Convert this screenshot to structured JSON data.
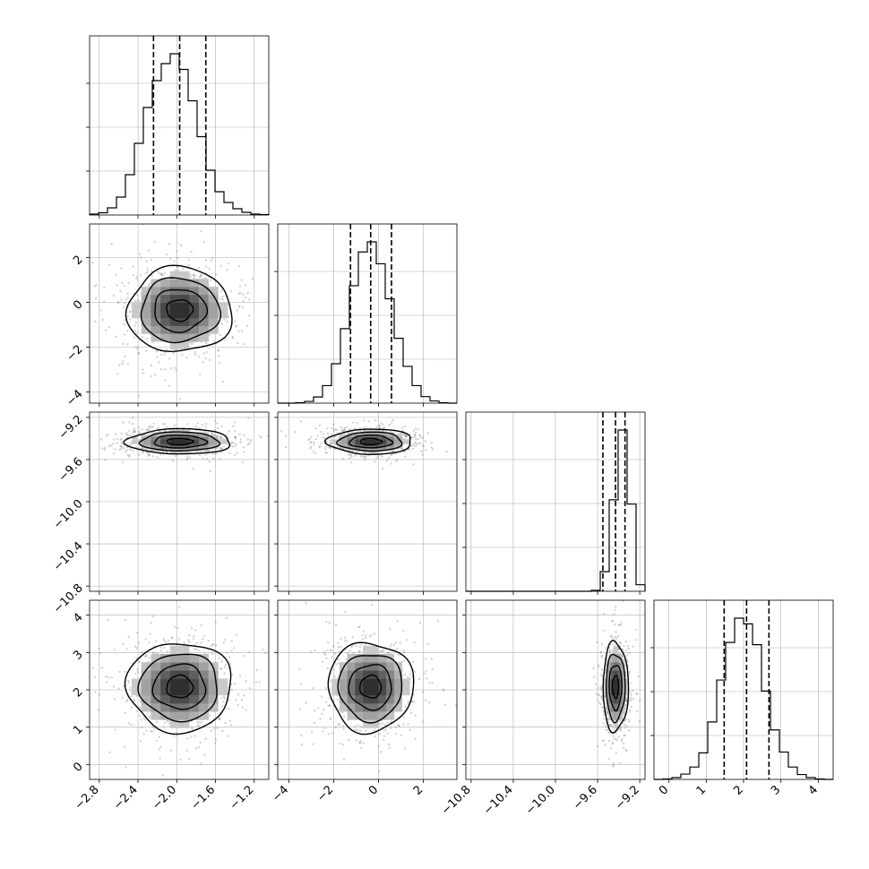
{
  "chart_data": {
    "type": "corner",
    "parameters": [
      {
        "range": [
          -2.9,
          -1.05
        ],
        "ticks": [
          -2.8,
          -2.4,
          -2.0,
          -1.6,
          -1.2
        ],
        "tick_labels": [
          "−2.8",
          "−2.4",
          "−2.0",
          "−1.6",
          "−1.2"
        ],
        "mean": -1.97,
        "sd": 0.27,
        "quantiles": [
          -2.24,
          -1.97,
          -1.7
        ]
      },
      {
        "range": [
          -4.5,
          3.5
        ],
        "ticks": [
          -4,
          -2,
          0,
          2
        ],
        "tick_labels": [
          "−4",
          "−2",
          "0",
          "2"
        ],
        "mean": -0.35,
        "sd": 0.95,
        "quantiles": [
          -1.25,
          -0.35,
          0.58
        ]
      },
      {
        "range": [
          -10.85,
          -9.15
        ],
        "ticks": [
          -10.8,
          -10.4,
          -10.0,
          -9.6,
          -9.2
        ],
        "tick_labels": [
          "−10.8",
          "−10.4",
          "−10.0",
          "−9.6",
          "−9.2"
        ],
        "mean": -9.43,
        "sd": 0.06,
        "quantiles": [
          -9.55,
          -9.43,
          -9.34
        ]
      },
      {
        "range": [
          -0.4,
          4.4
        ],
        "ticks": [
          0,
          1,
          2,
          3,
          4
        ],
        "tick_labels": [
          "0",
          "1",
          "2",
          "3",
          "4"
        ],
        "mean": 2.08,
        "sd": 0.6,
        "quantiles": [
          1.48,
          2.08,
          2.68
        ]
      }
    ],
    "histograms": [
      {
        "param": 0,
        "bin_edges": [
          -2.9,
          -2.8075,
          -2.715,
          -2.6225,
          -2.53,
          -2.4375,
          -2.345,
          -2.2525,
          -2.16,
          -2.0675,
          -1.975,
          -1.8825,
          -1.79,
          -1.6975,
          -1.605,
          -1.5125,
          -1.42,
          -1.3275,
          -1.235,
          -1.1425,
          -1.05
        ],
        "counts": [
          2,
          5,
          16,
          40,
          90,
          160,
          240,
          300,
          338,
          360,
          325,
          255,
          175,
          100,
          52,
          28,
          14,
          6,
          2,
          1
        ]
      },
      {
        "param": 1,
        "bin_edges": [
          -4.5,
          -4.1,
          -3.7,
          -3.3,
          -2.9,
          -2.5,
          -2.1,
          -1.7,
          -1.3,
          -0.9,
          -0.5,
          -0.1,
          0.3,
          0.7,
          1.1,
          1.5,
          1.9,
          2.3,
          2.7,
          3.1,
          3.5
        ],
        "counts": [
          0,
          0,
          1,
          4,
          14,
          40,
          90,
          170,
          268,
          345,
          368,
          318,
          238,
          148,
          84,
          40,
          15,
          5,
          1,
          0
        ]
      },
      {
        "param": 2,
        "bin_edges": [
          -10.85,
          -10.765,
          -10.68,
          -10.595,
          -10.51,
          -10.425,
          -10.34,
          -10.255,
          -10.17,
          -10.085,
          -10.0,
          -9.915,
          -9.83,
          -9.745,
          -9.66,
          -9.575,
          -9.49,
          -9.405,
          -9.32,
          -9.235,
          -9.15
        ],
        "counts": [
          0,
          0,
          0,
          0,
          0,
          0,
          0,
          0,
          0,
          0,
          0,
          0,
          0,
          0,
          2,
          45,
          210,
          370,
          200,
          15
        ]
      },
      {
        "param": 3,
        "bin_edges": [
          -0.4,
          -0.16,
          0.08,
          0.32,
          0.56,
          0.8,
          1.04,
          1.28,
          1.52,
          1.76,
          2.0,
          2.24,
          2.48,
          2.72,
          2.96,
          3.2,
          3.44,
          3.68,
          3.92,
          4.16,
          4.4
        ],
        "counts": [
          0,
          1,
          4,
          12,
          28,
          60,
          130,
          225,
          310,
          365,
          352,
          305,
          200,
          112,
          62,
          28,
          11,
          4,
          1,
          0
        ]
      }
    ],
    "pair_panels": [
      {
        "x_param": 0,
        "y_param": 1,
        "row": 1,
        "col": 0
      },
      {
        "x_param": 0,
        "y_param": 2,
        "row": 2,
        "col": 0
      },
      {
        "x_param": 1,
        "y_param": 2,
        "row": 2,
        "col": 1
      },
      {
        "x_param": 0,
        "y_param": 3,
        "row": 3,
        "col": 0
      },
      {
        "x_param": 1,
        "y_param": 3,
        "row": 3,
        "col": 1
      },
      {
        "x_param": 2,
        "y_param": 3,
        "row": 3,
        "col": 2
      }
    ],
    "contour_levels_sigma": [
      0.5,
      1.0,
      1.5,
      2.0
    ],
    "grid": true,
    "samples_shown": 600
  }
}
